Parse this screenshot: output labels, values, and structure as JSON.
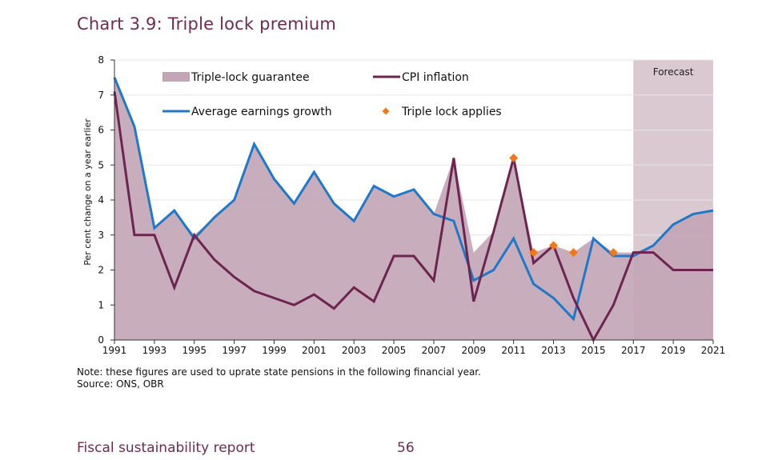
{
  "title": "Chart 3.9: Triple lock premium",
  "note": "Note: these figures are used to uprate state pensions in the following financial year.",
  "source": "Source: ONS, OBR",
  "footer": {
    "report": "Fiscal sustainability report",
    "page": "56"
  },
  "colors": {
    "guarantee": "#c3a6b6",
    "cpi": "#6e2450",
    "earnings": "#1f78c8",
    "triple_lock": "#f07818",
    "forecast": "#dbc9d2",
    "title": "#6e2a52"
  },
  "chart_data": {
    "type": "line",
    "xlabel": "",
    "ylabel": "Per cent change on a year earlier",
    "ylim": [
      0,
      8
    ],
    "xlim": [
      1991,
      2021
    ],
    "yticks": [
      0,
      1,
      2,
      3,
      4,
      5,
      6,
      7,
      8
    ],
    "xticks": [
      1991,
      1993,
      1995,
      1997,
      1999,
      2001,
      2003,
      2005,
      2007,
      2009,
      2011,
      2013,
      2015,
      2017,
      2019,
      2021
    ],
    "forecast_region": {
      "label": "Forecast",
      "from": 2017,
      "to": 2021
    },
    "legend_placement": "top-left, inside plot",
    "x": [
      1991,
      1992,
      1993,
      1994,
      1995,
      1996,
      1997,
      1998,
      1999,
      2000,
      2001,
      2002,
      2003,
      2004,
      2005,
      2006,
      2007,
      2008,
      2009,
      2010,
      2011,
      2012,
      2013,
      2014,
      2015,
      2016,
      2017,
      2018,
      2019,
      2020,
      2021
    ],
    "series": [
      {
        "name": "Triple-lock guarantee",
        "kind": "area",
        "values": [
          7.5,
          6.1,
          3.2,
          3.7,
          3.0,
          3.5,
          4.0,
          5.6,
          4.6,
          3.9,
          4.8,
          3.9,
          3.4,
          4.4,
          4.1,
          4.3,
          3.6,
          5.2,
          2.5,
          3.1,
          5.2,
          2.5,
          2.7,
          2.5,
          2.9,
          2.5,
          2.5,
          2.7,
          3.3,
          3.6,
          3.7
        ]
      },
      {
        "name": "CPI inflation",
        "kind": "line",
        "values": [
          7.1,
          3.0,
          3.0,
          1.5,
          3.0,
          2.3,
          1.8,
          1.4,
          1.2,
          1.0,
          1.3,
          0.9,
          1.5,
          1.1,
          2.4,
          2.4,
          1.7,
          5.2,
          1.1,
          3.1,
          5.2,
          2.2,
          2.7,
          1.2,
          0.0,
          1.0,
          2.5,
          2.5,
          2.0,
          2.0,
          2.0
        ]
      },
      {
        "name": "Average earnings growth",
        "kind": "line",
        "values": [
          7.5,
          6.1,
          3.2,
          3.7,
          2.9,
          3.5,
          4.0,
          5.6,
          4.6,
          3.9,
          4.8,
          3.9,
          3.4,
          4.4,
          4.1,
          4.3,
          3.6,
          3.4,
          1.7,
          2.0,
          2.9,
          1.6,
          1.2,
          0.6,
          2.9,
          2.4,
          2.4,
          2.7,
          3.3,
          3.6,
          3.7
        ]
      },
      {
        "name": "Triple lock applies",
        "kind": "marker",
        "points": [
          [
            2011,
            5.2
          ],
          [
            2012,
            2.5
          ],
          [
            2013,
            2.7
          ],
          [
            2014,
            2.5
          ],
          [
            2016,
            2.5
          ]
        ]
      }
    ]
  }
}
